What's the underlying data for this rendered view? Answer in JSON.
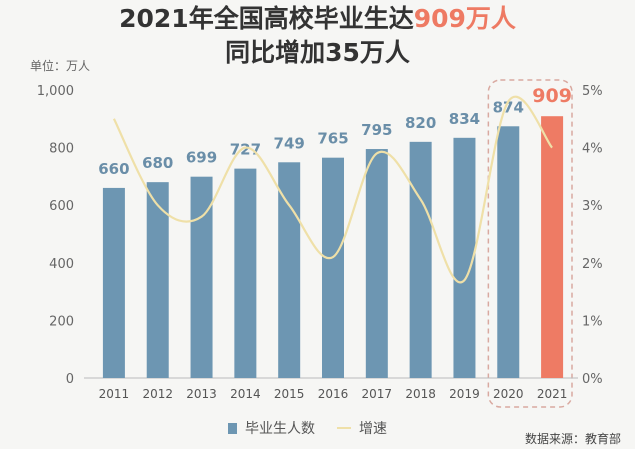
{
  "title_line1_prefix": "2021年全国高校毕业生达",
  "title_line1_highlight": "909万人",
  "title_line2": "同比增加35万人",
  "unit_label": "单位：万人",
  "legend": {
    "bars": "毕业生人数",
    "line": "增速"
  },
  "source": "数据来源：教育部",
  "colors": {
    "bar": "#6d96b2",
    "highlight_bar": "#ee7b64",
    "line": "#efe0a8",
    "highlight_text": "#ee7a63"
  },
  "chart_data": {
    "type": "bar",
    "categories": [
      "2011",
      "2012",
      "2013",
      "2014",
      "2015",
      "2016",
      "2017",
      "2018",
      "2019",
      "2020",
      "2021"
    ],
    "series": [
      {
        "name": "毕业生人数",
        "values": [
          660,
          680,
          699,
          727,
          749,
          765,
          795,
          820,
          834,
          874,
          909
        ],
        "axis": "left"
      },
      {
        "name": "增速",
        "type": "line",
        "values": [
          4.5,
          3.0,
          2.8,
          4.0,
          3.0,
          2.1,
          3.9,
          3.1,
          1.7,
          4.8,
          4.0
        ],
        "axis": "right"
      }
    ],
    "ylim": [
      0,
      1000
    ],
    "yticks": [
      "0",
      "200",
      "400",
      "600",
      "800",
      "1,000"
    ],
    "y2lim": [
      0,
      5
    ],
    "y2ticks": [
      "0%",
      "1%",
      "2%",
      "3%",
      "4%",
      "5%"
    ],
    "highlighted_categories": [
      "2020",
      "2021"
    ],
    "grid": false,
    "legend_position": "bottom"
  }
}
